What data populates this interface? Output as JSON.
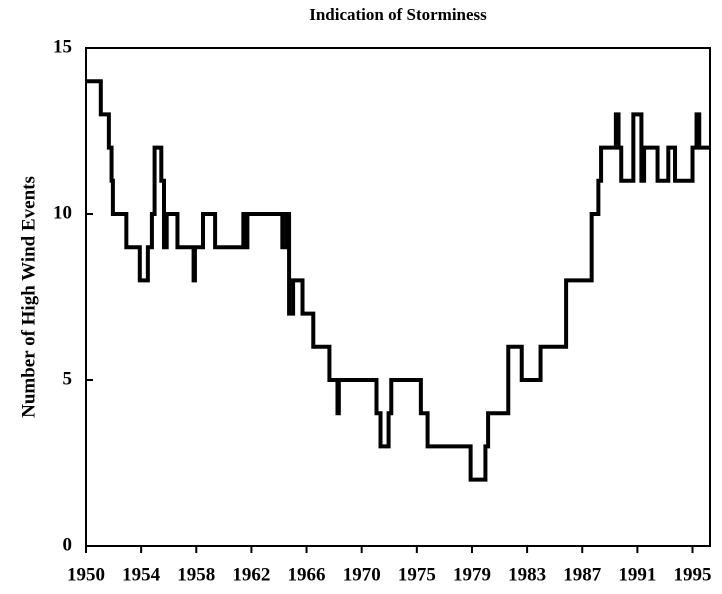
{
  "chart_data": {
    "type": "line",
    "step": "post",
    "title": "Indication of Storminess",
    "ylabel": "Number of High Wind Events",
    "color": "#000000",
    "x": [
      1950.0,
      1951.1,
      1951.7,
      1951.9,
      1952.0,
      1953.0,
      1954.0,
      1954.6,
      1954.9,
      1955.1,
      1955.6,
      1955.8,
      1956.0,
      1956.8,
      1958.0,
      1958.1,
      1958.7,
      1959.6,
      1961.7,
      1961.8,
      1962.0,
      1964.6,
      1964.9,
      1965.1,
      1965.4,
      1966.1,
      1966.9,
      1968.1,
      1968.7,
      1968.8,
      1971.6,
      1971.9,
      1972.5,
      1972.7,
      1974.9,
      1975.4,
      1978.6,
      1979.7,
      1979.9,
      1981.4,
      1982.4,
      1983.8,
      1985.7,
      1987.6,
      1988.1,
      1988.3,
      1989.4,
      1989.6,
      1989.8,
      1990.7,
      1991.3,
      1991.5,
      1992.5,
      1993.3,
      1993.8,
      1995.1,
      1995.4,
      1995.6
    ],
    "values": [
      14,
      13,
      12,
      11,
      10,
      9,
      8,
      9,
      10,
      12,
      11,
      9,
      10,
      9,
      8,
      9,
      10,
      9,
      10,
      9,
      10,
      9,
      10,
      7,
      8,
      7,
      6,
      5,
      4,
      5,
      4,
      3,
      4,
      5,
      4,
      3,
      2,
      3,
      4,
      6,
      5,
      6,
      8,
      10,
      11,
      12,
      13,
      12,
      11,
      13,
      11,
      12,
      11,
      12,
      11,
      12,
      13,
      12
    ],
    "xlim": [
      1950,
      1996.4
    ],
    "xticks": [
      1950,
      {
        "value": 1954.1,
        "label": "1954"
      },
      {
        "value": 1958.2,
        "label": "1958"
      },
      {
        "value": 1962.3,
        "label": "1962"
      },
      {
        "value": 1966.4,
        "label": "1966"
      },
      {
        "value": 1970.5,
        "label": "1970"
      },
      {
        "value": 1974.6,
        "label": "1975"
      },
      {
        "value": 1978.7,
        "label": "1979"
      },
      {
        "value": 1982.8,
        "label": "1983"
      },
      {
        "value": 1986.9,
        "label": "1987"
      },
      {
        "value": 1991.0,
        "label": "1991"
      },
      {
        "value": 1995.1,
        "label": "1995"
      }
    ],
    "ylim": [
      0,
      15
    ],
    "yticks": [
      0,
      5,
      10,
      15
    ]
  }
}
